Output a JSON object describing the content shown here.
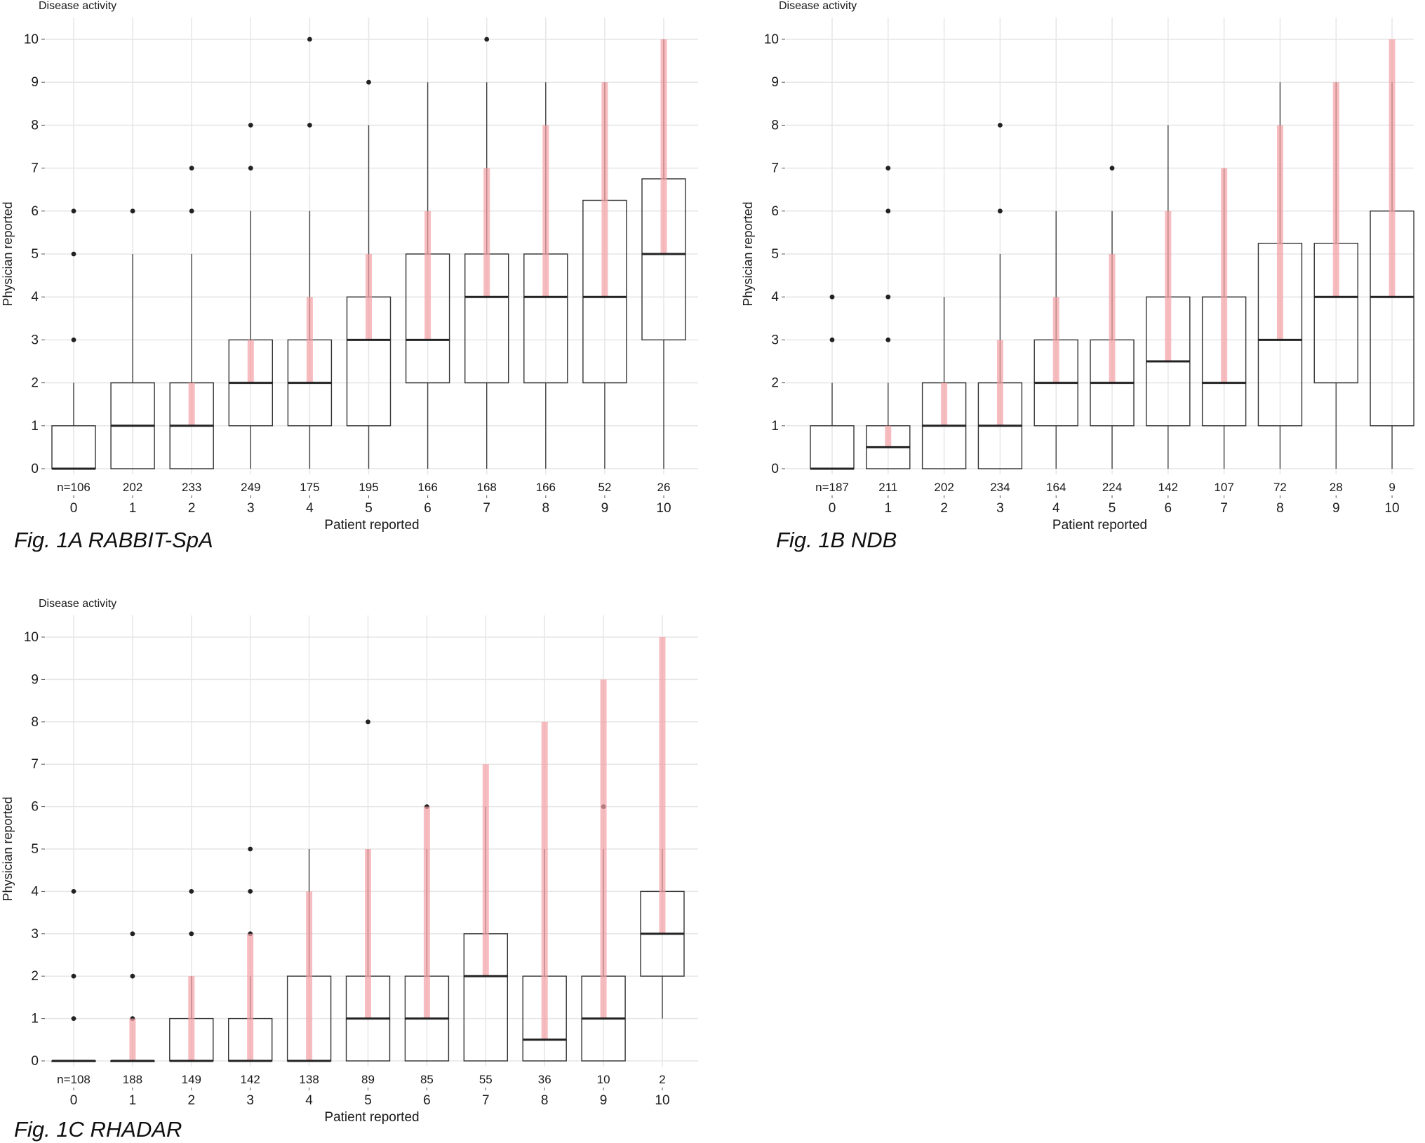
{
  "figure": {
    "captions": [
      "Fig. 1A RABBIT-SpA",
      "Fig. 1B NDB",
      "Fig. 1C RHADAR"
    ]
  },
  "chart_data": [
    {
      "type": "box",
      "title": "Disease activity",
      "xlabel": "Patient reported",
      "ylabel": "Physician reported",
      "categories": [
        "0",
        "1",
        "2",
        "3",
        "4",
        "5",
        "6",
        "7",
        "8",
        "9",
        "10"
      ],
      "n_labels": [
        "n=106",
        "202",
        "233",
        "249",
        "175",
        "195",
        "166",
        "168",
        "166",
        "52",
        "26"
      ],
      "yticks": [
        "0",
        "1",
        "2",
        "3",
        "4",
        "5",
        "6",
        "7",
        "8",
        "9",
        "10"
      ],
      "ylim": [
        0,
        10
      ],
      "grid": true,
      "boxes": [
        {
          "x": 0,
          "q1": 0,
          "median": 0,
          "q3": 1,
          "whisker_low": 0,
          "whisker_high": 2,
          "outliers": [
            3,
            5,
            6
          ]
        },
        {
          "x": 1,
          "q1": 0,
          "median": 1,
          "q3": 2,
          "whisker_low": 0,
          "whisker_high": 5,
          "outliers": [
            6
          ]
        },
        {
          "x": 2,
          "q1": 0,
          "median": 1,
          "q3": 2,
          "whisker_low": 0,
          "whisker_high": 5,
          "outliers": [
            6,
            7
          ]
        },
        {
          "x": 3,
          "q1": 1,
          "median": 2,
          "q3": 3,
          "whisker_low": 0,
          "whisker_high": 6,
          "outliers": [
            7,
            8
          ]
        },
        {
          "x": 4,
          "q1": 1,
          "median": 2,
          "q3": 3,
          "whisker_low": 0,
          "whisker_high": 6,
          "outliers": [
            8,
            10
          ]
        },
        {
          "x": 5,
          "q1": 1,
          "median": 3,
          "q3": 4,
          "whisker_low": 0,
          "whisker_high": 8,
          "outliers": [
            9
          ]
        },
        {
          "x": 6,
          "q1": 2,
          "median": 3,
          "q3": 5,
          "whisker_low": 0,
          "whisker_high": 9,
          "outliers": []
        },
        {
          "x": 7,
          "q1": 2,
          "median": 4,
          "q3": 5,
          "whisker_low": 0,
          "whisker_high": 9,
          "outliers": [
            10
          ]
        },
        {
          "x": 8,
          "q1": 2,
          "median": 4,
          "q3": 5,
          "whisker_low": 0,
          "whisker_high": 9,
          "outliers": []
        },
        {
          "x": 9,
          "q1": 2,
          "median": 4,
          "q3": 6.25,
          "whisker_low": 0,
          "whisker_high": 9,
          "outliers": []
        },
        {
          "x": 10,
          "q1": 3,
          "median": 5,
          "q3": 6.75,
          "whisker_low": 0,
          "whisker_high": 10,
          "outliers": []
        }
      ],
      "highlight_bars": [
        {
          "x": 0,
          "from": 0,
          "to": 0
        },
        {
          "x": 1,
          "from": 1,
          "to": 1
        },
        {
          "x": 2,
          "from": 1,
          "to": 2
        },
        {
          "x": 3,
          "from": 2,
          "to": 3
        },
        {
          "x": 4,
          "from": 2,
          "to": 4
        },
        {
          "x": 5,
          "from": 3,
          "to": 5
        },
        {
          "x": 6,
          "from": 3,
          "to": 6
        },
        {
          "x": 7,
          "from": 4,
          "to": 7
        },
        {
          "x": 8,
          "from": 4,
          "to": 8
        },
        {
          "x": 9,
          "from": 4,
          "to": 9
        },
        {
          "x": 10,
          "from": 5,
          "to": 10
        }
      ],
      "highlight_color": "#f4a0a4"
    },
    {
      "type": "box",
      "title": "Disease activity",
      "xlabel": "Patient reported",
      "ylabel": "Physician reported",
      "categories": [
        "0",
        "1",
        "2",
        "3",
        "4",
        "5",
        "6",
        "7",
        "8",
        "9",
        "10"
      ],
      "n_labels": [
        "n=187",
        "211",
        "202",
        "234",
        "164",
        "224",
        "142",
        "107",
        "72",
        "28",
        "9"
      ],
      "yticks": [
        "0",
        "1",
        "2",
        "3",
        "4",
        "5",
        "6",
        "7",
        "8",
        "9",
        "10"
      ],
      "ylim": [
        0,
        10
      ],
      "grid": true,
      "boxes": [
        {
          "x": 0,
          "q1": 0,
          "median": 0,
          "q3": 1,
          "whisker_low": 0,
          "whisker_high": 2,
          "outliers": [
            3,
            4
          ]
        },
        {
          "x": 1,
          "q1": 0,
          "median": 0.5,
          "q3": 1,
          "whisker_low": 0,
          "whisker_high": 2,
          "outliers": [
            3,
            4,
            6,
            7
          ]
        },
        {
          "x": 2,
          "q1": 0,
          "median": 1,
          "q3": 2,
          "whisker_low": 0,
          "whisker_high": 4,
          "outliers": []
        },
        {
          "x": 3,
          "q1": 0,
          "median": 1,
          "q3": 2,
          "whisker_low": 0,
          "whisker_high": 5,
          "outliers": [
            6,
            8
          ]
        },
        {
          "x": 4,
          "q1": 1,
          "median": 2,
          "q3": 3,
          "whisker_low": 0,
          "whisker_high": 6,
          "outliers": []
        },
        {
          "x": 5,
          "q1": 1,
          "median": 2,
          "q3": 3,
          "whisker_low": 0,
          "whisker_high": 6,
          "outliers": [
            7
          ]
        },
        {
          "x": 6,
          "q1": 1,
          "median": 2.5,
          "q3": 4,
          "whisker_low": 0,
          "whisker_high": 8,
          "outliers": []
        },
        {
          "x": 7,
          "q1": 1,
          "median": 2,
          "q3": 4,
          "whisker_low": 0,
          "whisker_high": 7,
          "outliers": []
        },
        {
          "x": 8,
          "q1": 1,
          "median": 3,
          "q3": 5.25,
          "whisker_low": 0,
          "whisker_high": 9,
          "outliers": []
        },
        {
          "x": 9,
          "q1": 2,
          "median": 4,
          "q3": 5.25,
          "whisker_low": 0,
          "whisker_high": 9,
          "outliers": []
        },
        {
          "x": 10,
          "q1": 1,
          "median": 4,
          "q3": 6,
          "whisker_low": 0,
          "whisker_high": 9,
          "outliers": []
        }
      ],
      "highlight_bars": [
        {
          "x": 0,
          "from": 0,
          "to": 0
        },
        {
          "x": 1,
          "from": 0.5,
          "to": 1
        },
        {
          "x": 2,
          "from": 1,
          "to": 2
        },
        {
          "x": 3,
          "from": 1,
          "to": 3
        },
        {
          "x": 4,
          "from": 2,
          "to": 4
        },
        {
          "x": 5,
          "from": 2,
          "to": 5
        },
        {
          "x": 6,
          "from": 2.5,
          "to": 6
        },
        {
          "x": 7,
          "from": 2,
          "to": 7
        },
        {
          "x": 8,
          "from": 3,
          "to": 8
        },
        {
          "x": 9,
          "from": 4,
          "to": 9
        },
        {
          "x": 10,
          "from": 4,
          "to": 10
        }
      ],
      "highlight_color": "#f4a0a4"
    },
    {
      "type": "box",
      "title": "Disease activity",
      "xlabel": "Patient reported",
      "ylabel": "Physician reported",
      "categories": [
        "0",
        "1",
        "2",
        "3",
        "4",
        "5",
        "6",
        "7",
        "8",
        "9",
        "10"
      ],
      "n_labels": [
        "n=108",
        "188",
        "149",
        "142",
        "138",
        "89",
        "85",
        "55",
        "36",
        "10",
        "2"
      ],
      "yticks": [
        "0",
        "1",
        "2",
        "3",
        "4",
        "5",
        "6",
        "7",
        "8",
        "9",
        "10"
      ],
      "ylim": [
        0,
        10
      ],
      "grid": true,
      "boxes": [
        {
          "x": 0,
          "q1": 0,
          "median": 0,
          "q3": 0,
          "whisker_low": 0,
          "whisker_high": 0,
          "outliers": [
            1,
            2,
            4
          ]
        },
        {
          "x": 1,
          "q1": 0,
          "median": 0,
          "q3": 0,
          "whisker_low": 0,
          "whisker_high": 0,
          "outliers": [
            1,
            2,
            3
          ]
        },
        {
          "x": 2,
          "q1": 0,
          "median": 0,
          "q3": 1,
          "whisker_low": 0,
          "whisker_high": 2,
          "outliers": [
            3,
            4
          ]
        },
        {
          "x": 3,
          "q1": 0,
          "median": 0,
          "q3": 1,
          "whisker_low": 0,
          "whisker_high": 2,
          "outliers": [
            3,
            4,
            5
          ]
        },
        {
          "x": 4,
          "q1": 0,
          "median": 0,
          "q3": 2,
          "whisker_low": 0,
          "whisker_high": 5,
          "outliers": []
        },
        {
          "x": 5,
          "q1": 0,
          "median": 1,
          "q3": 2,
          "whisker_low": 0,
          "whisker_high": 5,
          "outliers": [
            8
          ]
        },
        {
          "x": 6,
          "q1": 0,
          "median": 1,
          "q3": 2,
          "whisker_low": 0,
          "whisker_high": 5,
          "outliers": [
            6
          ]
        },
        {
          "x": 7,
          "q1": 0,
          "median": 2,
          "q3": 3,
          "whisker_low": 0,
          "whisker_high": 6,
          "outliers": []
        },
        {
          "x": 8,
          "q1": 0,
          "median": 0.5,
          "q3": 2,
          "whisker_low": 0,
          "whisker_high": 5,
          "outliers": []
        },
        {
          "x": 9,
          "q1": 0,
          "median": 1,
          "q3": 2,
          "whisker_low": 0,
          "whisker_high": 5,
          "outliers": [
            6
          ]
        },
        {
          "x": 10,
          "q1": 2,
          "median": 3,
          "q3": 4,
          "whisker_low": 1,
          "whisker_high": 5,
          "outliers": []
        }
      ],
      "highlight_bars": [
        {
          "x": 0,
          "from": 0,
          "to": 0
        },
        {
          "x": 1,
          "from": 0,
          "to": 1
        },
        {
          "x": 2,
          "from": 0,
          "to": 2
        },
        {
          "x": 3,
          "from": 0,
          "to": 3
        },
        {
          "x": 4,
          "from": 0,
          "to": 4
        },
        {
          "x": 5,
          "from": 1,
          "to": 5
        },
        {
          "x": 6,
          "from": 1,
          "to": 6
        },
        {
          "x": 7,
          "from": 2,
          "to": 7
        },
        {
          "x": 8,
          "from": 0.5,
          "to": 8
        },
        {
          "x": 9,
          "from": 1,
          "to": 9
        },
        {
          "x": 10,
          "from": 3,
          "to": 10
        }
      ],
      "highlight_color": "#f4a0a4"
    }
  ]
}
